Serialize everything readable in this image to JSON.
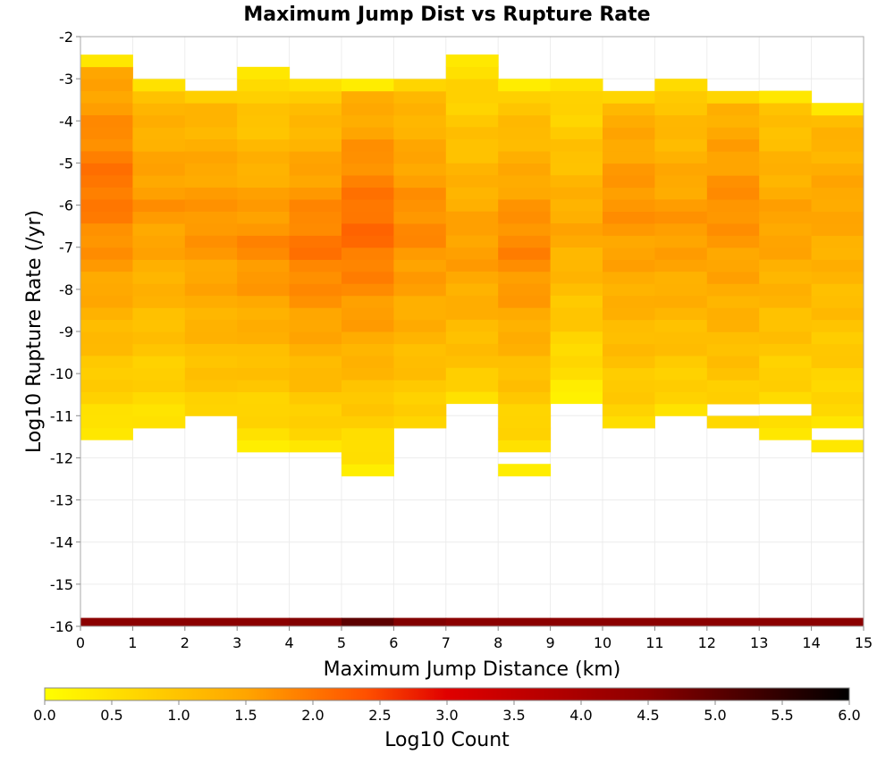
{
  "chart_data": {
    "type": "heatmap",
    "title": "Maximum Jump Dist vs Rupture Rate",
    "xlabel": "Maximum Jump Distance (km)",
    "ylabel": "Log10 Rupture Rate (/yr)",
    "xlim": [
      0,
      15
    ],
    "ylim": [
      -16,
      -2
    ],
    "x_ticks": [
      "0",
      "1",
      "2",
      "3",
      "4",
      "5",
      "6",
      "7",
      "8",
      "9",
      "10",
      "11",
      "12",
      "13",
      "14",
      "15"
    ],
    "y_ticks": [
      "-2",
      "-3",
      "-4",
      "-5",
      "-6",
      "-7",
      "-8",
      "-9",
      "-10",
      "-11",
      "-12",
      "-13",
      "-14",
      "-15",
      "-16"
    ],
    "bin_width_x": 1,
    "bin_height_y": 0.2857,
    "grid": true,
    "colorbar": {
      "label": "Log10 Count",
      "min": 0,
      "max": 6,
      "ticks": [
        "0.0",
        "0.5",
        "1.0",
        "1.5",
        "2.0",
        "2.5",
        "3.0",
        "3.5",
        "4.0",
        "4.5",
        "5.0",
        "5.5",
        "6.0"
      ],
      "colors": [
        "#ffff00",
        "#ffa500",
        "#ff5000",
        "#e00000",
        "#8b0000",
        "#000000"
      ]
    },
    "columns": [
      {
        "x": 0,
        "ymin": -11.57,
        "ymax": -2.43,
        "peak_y": -5.5,
        "peak": 2.05,
        "edge": 0.3
      },
      {
        "x": 1,
        "ymin": -11.29,
        "ymax": -3.0,
        "peak_y": -6.0,
        "peak": 1.65,
        "edge": 0.4
      },
      {
        "x": 2,
        "ymin": -11.0,
        "ymax": -3.29,
        "peak_y": -6.5,
        "peak": 1.7,
        "edge": 0.7
      },
      {
        "x": 3,
        "ymin": -11.86,
        "ymax": -2.71,
        "peak_y": -7.0,
        "peak": 1.8,
        "edge": 0.3
      },
      {
        "x": 4,
        "ymin": -11.86,
        "ymax": -3.0,
        "peak_y": -7.0,
        "peak": 2.0,
        "edge": 0.4
      },
      {
        "x": 5,
        "ymin": -12.43,
        "ymax": -3.0,
        "peak_y": -6.5,
        "peak": 2.15,
        "edge": 0.2
      },
      {
        "x": 6,
        "ymin": -11.29,
        "ymax": -3.0,
        "peak_y": -6.5,
        "peak": 1.8,
        "edge": 0.6
      },
      {
        "x": 7,
        "ymin": -10.71,
        "ymax": -2.43,
        "peak_y": -7.0,
        "peak": 1.6,
        "edge": 0.4
      },
      {
        "x": 8,
        "ymin": -12.43,
        "ymax": -3.0,
        "peak_y": -7.0,
        "peak": 1.85,
        "edge": 0.2
      },
      {
        "x": 9,
        "ymin": -10.71,
        "ymax": -2.71,
        "peak_y": -6.5,
        "peak": 1.45,
        "edge": 0.2
      },
      {
        "x": 10,
        "ymin": -11.29,
        "ymax": -3.29,
        "peak_y": -6.0,
        "peak": 1.7,
        "edge": 0.6
      },
      {
        "x": 11,
        "ymin": -11.0,
        "ymax": -3.0,
        "peak_y": -6.5,
        "peak": 1.65,
        "edge": 0.5
      },
      {
        "x": 12,
        "ymin": -11.29,
        "ymax": -3.29,
        "peak_y": -6.0,
        "peak": 1.75,
        "edge": 0.6
      },
      {
        "x": 13,
        "ymin": -11.57,
        "ymax": -3.29,
        "peak_y": -6.5,
        "peak": 1.55,
        "edge": 0.3
      },
      {
        "x": 14,
        "ymin": -11.86,
        "ymax": -3.57,
        "peak_y": -6.0,
        "peak": 1.5,
        "edge": 0.3
      }
    ],
    "empty_bins": [
      {
        "x": 0,
        "y": -11.29
      },
      {
        "x": 8,
        "y": -12.14
      },
      {
        "x": 9,
        "y": -3.0
      },
      {
        "x": 12,
        "y": -11.0
      },
      {
        "x": 13,
        "y": -11.0
      },
      {
        "x": 14,
        "y": -11.57
      }
    ],
    "bottom_row": {
      "y": -16,
      "height": 0.2,
      "values": [
        4.5,
        4.5,
        4.5,
        4.5,
        4.6,
        5.0,
        4.6,
        4.5,
        4.5,
        4.5,
        4.5,
        4.5,
        4.5,
        4.5,
        4.5
      ]
    }
  }
}
